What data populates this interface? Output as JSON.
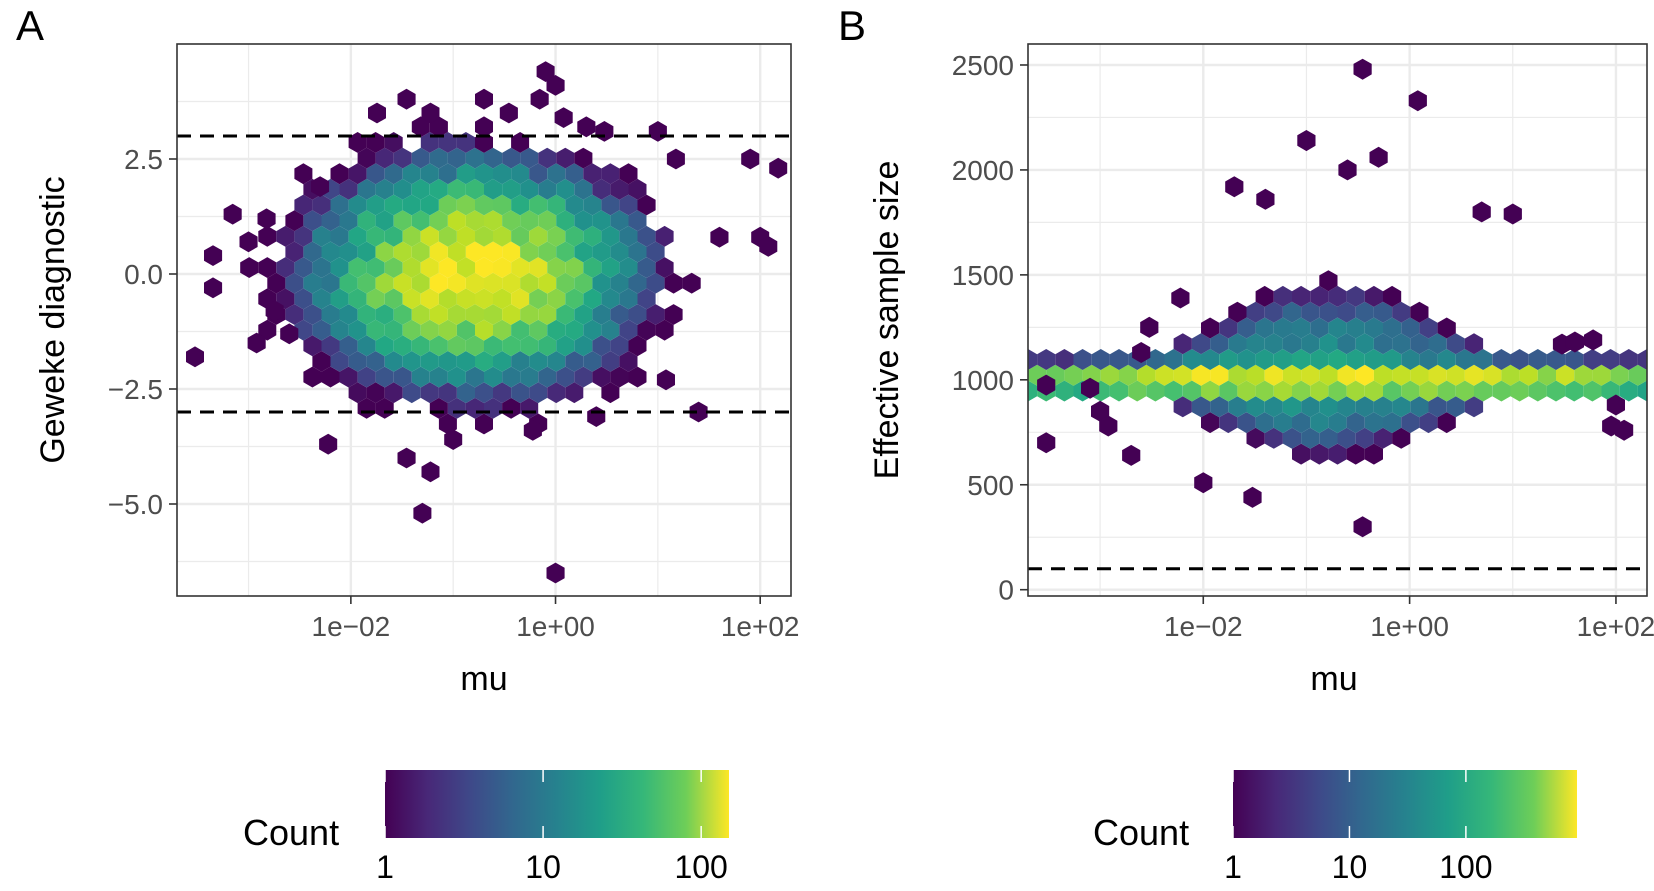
{
  "figure": {
    "panels": [
      {
        "tag": "A",
        "xlabel": "mu",
        "ylabel": "Geweke diagnostic",
        "x_ticks": [
          {
            "value": 0.01,
            "label": "1e−02"
          },
          {
            "value": 1,
            "label": "1e+00"
          },
          {
            "value": 100,
            "label": "1e+02"
          }
        ],
        "y_ticks": [
          {
            "value": -5,
            "label": "−5.0"
          },
          {
            "value": -2.5,
            "label": "−2.5"
          },
          {
            "value": 0,
            "label": "0.0"
          },
          {
            "value": 2.5,
            "label": "2.5"
          }
        ],
        "legend": {
          "title": "Count",
          "ticks": [
            {
              "value": 1,
              "label": "1"
            },
            {
              "value": 10,
              "label": "10"
            },
            {
              "value": 100,
              "label": "100"
            }
          ]
        }
      },
      {
        "tag": "B",
        "xlabel": "mu",
        "ylabel": "Effective sample size",
        "x_ticks": [
          {
            "value": 0.01,
            "label": "1e−02"
          },
          {
            "value": 1,
            "label": "1e+00"
          },
          {
            "value": 100,
            "label": "1e+02"
          }
        ],
        "y_ticks": [
          {
            "value": 0,
            "label": "0"
          },
          {
            "value": 500,
            "label": "500"
          },
          {
            "value": 1000,
            "label": "1000"
          },
          {
            "value": 1500,
            "label": "1500"
          },
          {
            "value": 2000,
            "label": "2000"
          },
          {
            "value": 2500,
            "label": "2500"
          }
        ],
        "legend": {
          "title": "Count",
          "ticks": [
            {
              "value": 1,
              "label": "1"
            },
            {
              "value": 10,
              "label": "10"
            },
            {
              "value": 100,
              "label": "100"
            }
          ]
        }
      }
    ]
  },
  "colors": {
    "viridis_low": "#440154",
    "viridis_mid": "#21918c",
    "viridis_high": "#fde725",
    "gridline": "#ebebeb",
    "reference_line": "#000000"
  },
  "chart_data": [
    {
      "type": "heatmap",
      "subtype": "hexbin",
      "x_scale": "log10",
      "xlim": [
        0.0002,
        200
      ],
      "ylim": [
        -7,
        5
      ],
      "reference_lines_y": [
        3,
        -3
      ],
      "color_scale": {
        "type": "log10",
        "min": 1,
        "max": 150
      },
      "density_model": {
        "center_log10_x": -0.8,
        "center_y": 0,
        "spread_log10_x": 0.85,
        "spread_y": 1.3,
        "peak_count": 140
      },
      "outlier_points": [
        {
          "x": 0.0003,
          "y": -1.8
        },
        {
          "x": 0.00045,
          "y": 0.4
        },
        {
          "x": 0.00045,
          "y": -0.3
        },
        {
          "x": 0.0007,
          "y": 1.3
        },
        {
          "x": 0.001,
          "y": 0.7
        },
        {
          "x": 0.0015,
          "y": 1.2
        },
        {
          "x": 0.0012,
          "y": -1.5
        },
        {
          "x": 0.0018,
          "y": -0.8
        },
        {
          "x": 0.0025,
          "y": -1.3
        },
        {
          "x": 0.005,
          "y": 1.9
        },
        {
          "x": 0.018,
          "y": 3.5
        },
        {
          "x": 0.035,
          "y": 3.8
        },
        {
          "x": 0.06,
          "y": 3.5
        },
        {
          "x": 0.006,
          "y": -3.7
        },
        {
          "x": 0.035,
          "y": -4.0
        },
        {
          "x": 0.05,
          "y": -5.2
        },
        {
          "x": 0.06,
          "y": -4.3
        },
        {
          "x": 0.1,
          "y": -3.6
        },
        {
          "x": 0.2,
          "y": 3.8
        },
        {
          "x": 0.2,
          "y": 3.2
        },
        {
          "x": 0.35,
          "y": 3.5
        },
        {
          "x": 0.8,
          "y": 4.4
        },
        {
          "x": 1.0,
          "y": 4.1
        },
        {
          "x": 0.7,
          "y": 3.8
        },
        {
          "x": 1.2,
          "y": 3.4
        },
        {
          "x": 2.0,
          "y": 3.2
        },
        {
          "x": 3.0,
          "y": 3.1
        },
        {
          "x": 10,
          "y": 3.1
        },
        {
          "x": 15,
          "y": 2.5
        },
        {
          "x": 80,
          "y": 2.5
        },
        {
          "x": 150,
          "y": 2.3
        },
        {
          "x": 0.6,
          "y": -3.4
        },
        {
          "x": 2.5,
          "y": -3.1
        },
        {
          "x": 1.0,
          "y": -6.5
        },
        {
          "x": 12,
          "y": -2.3
        },
        {
          "x": 25,
          "y": -3.0
        },
        {
          "x": 40,
          "y": 0.8
        },
        {
          "x": 100,
          "y": 0.8
        },
        {
          "x": 120,
          "y": 0.6
        }
      ]
    },
    {
      "type": "heatmap",
      "subtype": "hexbin",
      "x_scale": "log10",
      "xlim": [
        0.0002,
        200
      ],
      "ylim": [
        -30,
        2600
      ],
      "reference_lines_y": [
        100
      ],
      "color_scale": {
        "type": "log10",
        "min": 1,
        "max": 900
      },
      "density_model": {
        "center_log10_x": -0.8,
        "center_y": 980,
        "band_y": 1000,
        "band_peak": 900,
        "spread_log10_x": 1.4
      },
      "outlier_points": [
        {
          "x": 0.0003,
          "y": 975
        },
        {
          "x": 0.0003,
          "y": 700
        },
        {
          "x": 0.0008,
          "y": 960
        },
        {
          "x": 0.001,
          "y": 850
        },
        {
          "x": 0.0012,
          "y": 780
        },
        {
          "x": 0.002,
          "y": 640
        },
        {
          "x": 0.0025,
          "y": 1130
        },
        {
          "x": 0.003,
          "y": 1250
        },
        {
          "x": 0.006,
          "y": 1390
        },
        {
          "x": 0.01,
          "y": 510
        },
        {
          "x": 0.02,
          "y": 1920
        },
        {
          "x": 0.03,
          "y": 440
        },
        {
          "x": 0.04,
          "y": 1860
        },
        {
          "x": 0.1,
          "y": 2140
        },
        {
          "x": 0.25,
          "y": 2000
        },
        {
          "x": 0.35,
          "y": 2480
        },
        {
          "x": 0.35,
          "y": 300
        },
        {
          "x": 0.5,
          "y": 2060
        },
        {
          "x": 1.2,
          "y": 2330
        },
        {
          "x": 5,
          "y": 1800
        },
        {
          "x": 10,
          "y": 1790
        },
        {
          "x": 30,
          "y": 1170
        },
        {
          "x": 40,
          "y": 1180
        },
        {
          "x": 60,
          "y": 1190
        },
        {
          "x": 90,
          "y": 780
        },
        {
          "x": 120,
          "y": 760
        },
        {
          "x": 100,
          "y": 880
        }
      ]
    }
  ]
}
